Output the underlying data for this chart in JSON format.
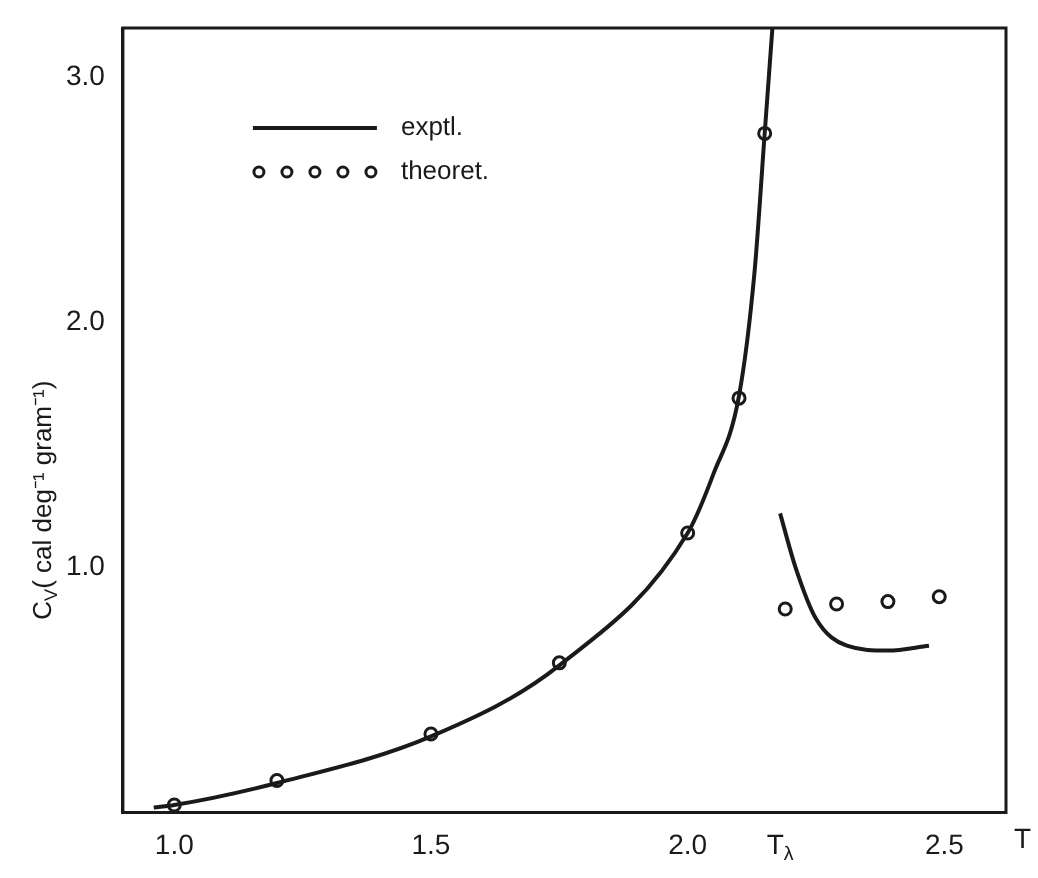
{
  "chart_data": {
    "type": "line",
    "xlabel": "T",
    "ylabel": "C$_{V}$( cal deg⁻¹ gram⁻¹)",
    "xlim": [
      0.9,
      2.62
    ],
    "ylim": [
      0,
      3.2
    ],
    "xticks": [
      {
        "value": 1,
        "label": "1.0"
      },
      1.5,
      {
        "value": 2,
        "label": "2.0"
      },
      {
        "value": 2.18,
        "label": "T$_{λ}$"
      },
      2.5
    ],
    "yticks": [
      {
        "value": 1,
        "label": "1.0"
      },
      {
        "value": 2,
        "label": "2.0"
      },
      {
        "value": 3,
        "label": "3.0"
      }
    ],
    "grid": false,
    "legend": "top left",
    "series": [
      {
        "name": "exptl.",
        "type": "line",
        "color": "#1a1a1a",
        "marker": "none",
        "line_style": "solid",
        "x": [
          0.96,
          1.0,
          1.2,
          1.5,
          1.75,
          2.0,
          2.05,
          2.1,
          2.13,
          2.15,
          2.165,
          2.175,
          2.18,
          2.21,
          2.25,
          2.31,
          2.39,
          2.47
        ],
        "values": [
          0.02,
          0.03,
          0.12,
          0.31,
          0.6,
          1.14,
          1.38,
          1.7,
          2.2,
          2.77,
          3.2,
          null,
          1.22,
          1.0,
          0.79,
          0.68,
          0.66,
          0.68
        ]
      },
      {
        "name": "theoret.",
        "type": "scatter",
        "color": "#1a1a1a",
        "marker": "circle",
        "x": [
          1.0,
          1.2,
          1.5,
          1.75,
          2.0,
          2.1,
          2.15,
          2.19,
          2.29,
          2.39,
          2.49
        ],
        "values": [
          0.03,
          0.13,
          0.32,
          0.61,
          1.14,
          1.69,
          2.77,
          0.83,
          0.85,
          0.86,
          0.88
        ]
      }
    ]
  }
}
